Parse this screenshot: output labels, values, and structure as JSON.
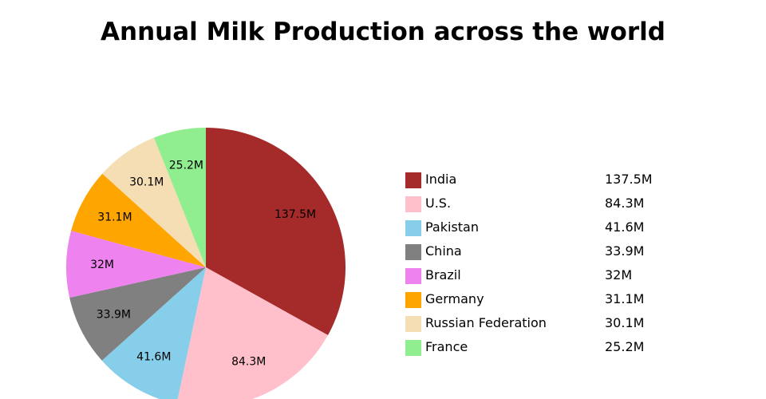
{
  "chart_data": {
    "type": "pie",
    "title": "Annual Milk Production across the world",
    "categories": [
      "India",
      "U.S.",
      "Pakistan",
      "China",
      "Brazil",
      "Germany",
      "Russian Federation",
      "France"
    ],
    "values": [
      137.5,
      84.3,
      41.6,
      33.9,
      32,
      31.1,
      30.1,
      25.2
    ],
    "value_labels": [
      "137.5M",
      "84.3M",
      "41.6M",
      "33.9M",
      "32M",
      "31.1M",
      "30.1M",
      "25.2M"
    ],
    "colors": [
      "#a52a2a",
      "#ffc0cb",
      "#87ceeb",
      "#808080",
      "#ee82ee",
      "#ffa500",
      "#f5deb3",
      "#90ee90"
    ],
    "start_angle": "12 o'clock",
    "direction": "clockwise",
    "legend_position": "right"
  }
}
